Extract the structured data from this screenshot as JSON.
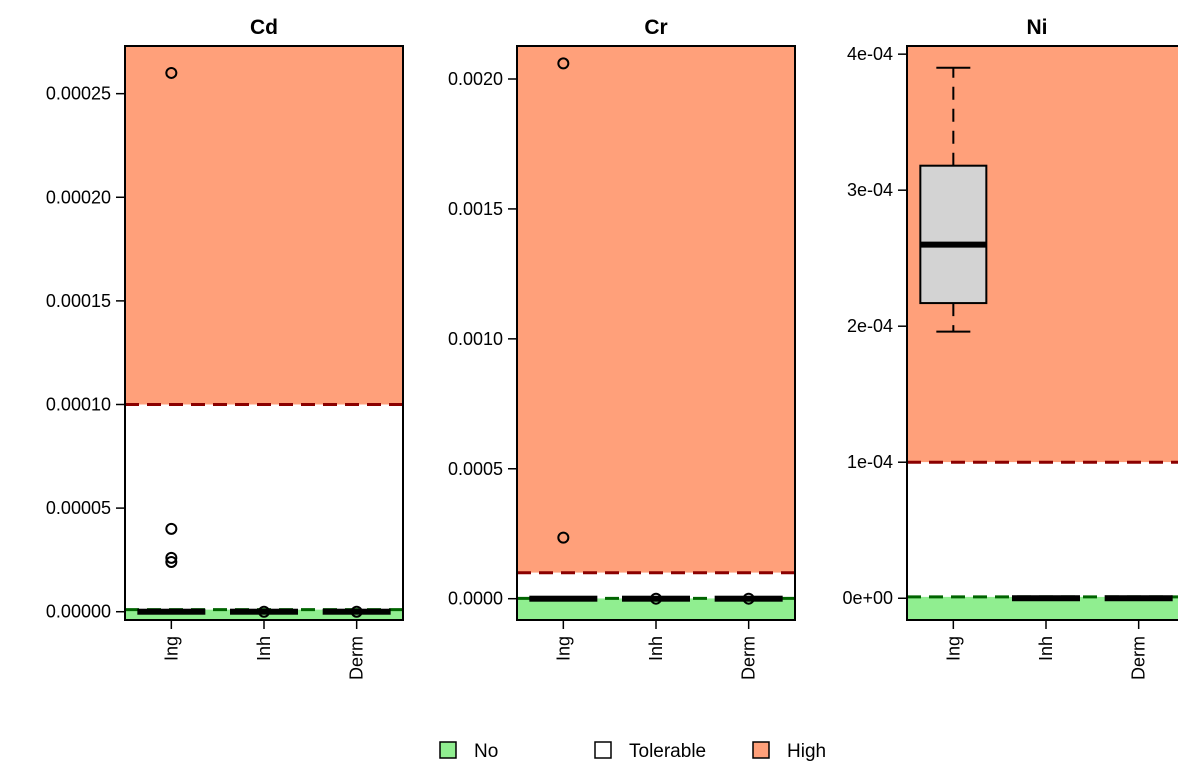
{
  "colors": {
    "no": "#90ee90",
    "tolerable": "#ffffff",
    "high": "#ffa07a",
    "high_line": "#8b0000",
    "no_line": "#006400",
    "box_fill": "#d3d3d3"
  },
  "legend": {
    "items": [
      {
        "label": "No",
        "color": "#90ee90"
      },
      {
        "label": "Tolerable",
        "color": "#ffffff"
      },
      {
        "label": "High",
        "color": "#ffa07a"
      }
    ]
  },
  "chart_data": [
    {
      "type": "box",
      "title": "Cd",
      "categories": [
        "Ing",
        "Inh",
        "Derm"
      ],
      "ylim": [
        -4e-06,
        0.000273
      ],
      "yticks": [
        0,
        5e-05,
        0.0001,
        0.00015,
        0.0002,
        0.00025
      ],
      "ytick_labels": [
        "0.00000",
        "0.00005",
        "0.00010",
        "0.00015",
        "0.00020",
        "0.00025"
      ],
      "thresholds": {
        "no_upper": 1e-06,
        "high_lower": 0.0001
      },
      "boxes": [
        {
          "category": "Ing",
          "q1": 0,
          "median": 0,
          "q3": 0,
          "whisker_low": 0,
          "whisker_high": 0,
          "outliers": [
            0.00026,
            4e-05,
            2.6e-05,
            2.4e-05
          ]
        },
        {
          "category": "Inh",
          "q1": 0,
          "median": 0,
          "q3": 0,
          "whisker_low": 0,
          "whisker_high": 0,
          "outliers": [
            0
          ]
        },
        {
          "category": "Derm",
          "q1": 0,
          "median": 0,
          "q3": 0,
          "whisker_low": 0,
          "whisker_high": 0,
          "outliers": [
            0
          ]
        }
      ]
    },
    {
      "type": "box",
      "title": "Cr",
      "categories": [
        "Ing",
        "Inh",
        "Derm"
      ],
      "ylim": [
        -8.2e-05,
        0.002127
      ],
      "yticks": [
        0,
        0.0005,
        0.001,
        0.0015,
        0.002
      ],
      "ytick_labels": [
        "0.0000",
        "0.0005",
        "0.0010",
        "0.0015",
        "0.0020"
      ],
      "thresholds": {
        "no_upper": 1e-06,
        "high_lower": 0.0001
      },
      "boxes": [
        {
          "category": "Ing",
          "q1": 0,
          "median": 0,
          "q3": 0,
          "whisker_low": 0,
          "whisker_high": 0,
          "outliers": [
            0.00206,
            0.000235
          ]
        },
        {
          "category": "Inh",
          "q1": 0,
          "median": 0,
          "q3": 0,
          "whisker_low": 0,
          "whisker_high": 0,
          "outliers": [
            0
          ]
        },
        {
          "category": "Derm",
          "q1": 0,
          "median": 0,
          "q3": 0,
          "whisker_low": 0,
          "whisker_high": 0,
          "outliers": [
            0
          ]
        }
      ]
    },
    {
      "type": "box",
      "title": "Ni",
      "categories": [
        "Ing",
        "Inh",
        "Derm"
      ],
      "ylim": [
        -1.6e-05,
        0.000406
      ],
      "yticks": [
        0,
        0.0001,
        0.0002,
        0.0003,
        0.0004
      ],
      "ytick_labels": [
        "0e+00",
        "1e-04",
        "2e-04",
        "3e-04",
        "4e-04"
      ],
      "thresholds": {
        "no_upper": 1e-06,
        "high_lower": 0.0001
      },
      "boxes": [
        {
          "category": "Ing",
          "q1": 0.000217,
          "median": 0.00026,
          "q3": 0.000318,
          "whisker_low": 0.000196,
          "whisker_high": 0.00039,
          "outliers": []
        },
        {
          "category": "Inh",
          "q1": 0,
          "median": 0,
          "q3": 0,
          "whisker_low": 0,
          "whisker_high": 0,
          "outliers": []
        },
        {
          "category": "Derm",
          "q1": 0,
          "median": 0,
          "q3": 0,
          "whisker_low": 0,
          "whisker_high": 0,
          "outliers": []
        }
      ]
    }
  ]
}
